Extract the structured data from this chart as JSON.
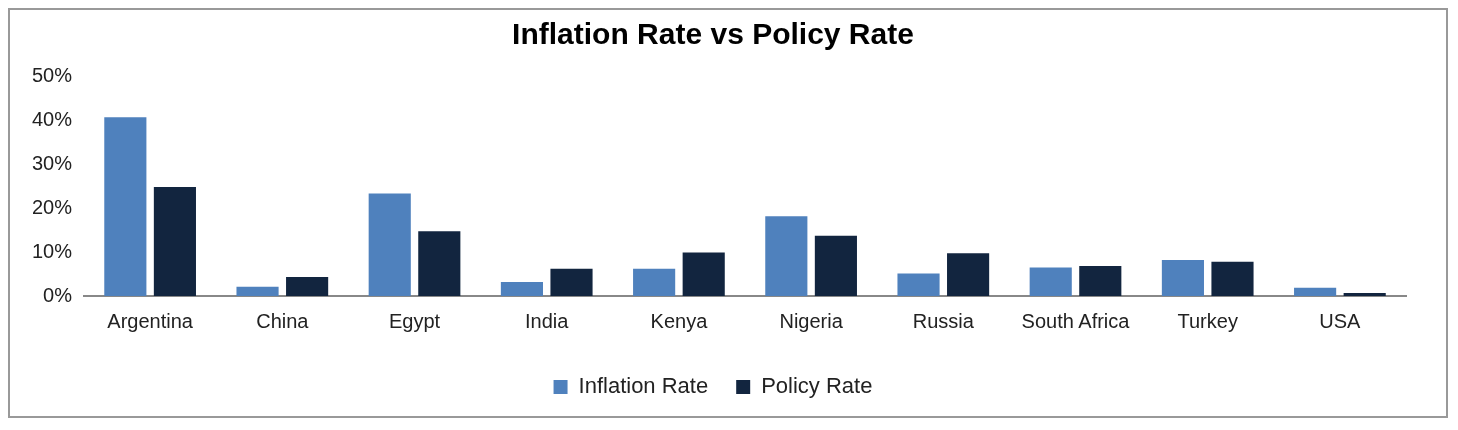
{
  "chart_data": {
    "type": "bar",
    "title": "Inflation Rate vs Policy Rate",
    "categories": [
      "Argentina",
      "China",
      "Egypt",
      "India",
      "Kenya",
      "Nigeria",
      "Russia",
      "South Africa",
      "Turkey",
      "USA"
    ],
    "series": [
      {
        "name": "Inflation Rate",
        "color": "#4f81bd",
        "values": [
          40.6,
          2.1,
          23.3,
          3.2,
          6.2,
          18.1,
          5.1,
          6.5,
          8.2,
          1.9
        ]
      },
      {
        "name": "Policy Rate",
        "color": "#12253f",
        "values": [
          24.8,
          4.3,
          14.7,
          6.2,
          9.9,
          13.7,
          9.7,
          6.8,
          7.8,
          0.7
        ]
      }
    ],
    "ylim": [
      0,
      50
    ],
    "yticks": [
      {
        "value": 0,
        "label": "0%"
      },
      {
        "value": 10,
        "label": "10%"
      },
      {
        "value": 20,
        "label": "20%"
      },
      {
        "value": 30,
        "label": "30%"
      },
      {
        "value": 40,
        "label": "40%"
      },
      {
        "value": 50,
        "label": "50%"
      }
    ],
    "grid": false,
    "legend": "bottom"
  }
}
